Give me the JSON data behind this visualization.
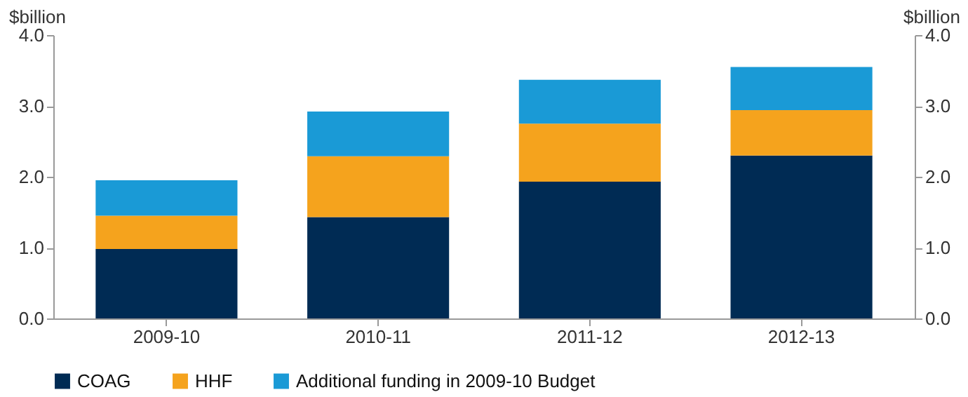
{
  "chart_data": {
    "type": "bar",
    "stacked": true,
    "categories": [
      "2009-10",
      "2010-11",
      "2011-12",
      "2012-13"
    ],
    "series": [
      {
        "name": "COAG",
        "color": "#002b54",
        "values": [
          0.98,
          1.43,
          1.93,
          2.3
        ]
      },
      {
        "name": "HHF",
        "color": "#f5a31d",
        "values": [
          0.47,
          0.86,
          0.82,
          0.64
        ]
      },
      {
        "name": "Additional funding in 2009-10 Budget",
        "color": "#1a9ad6",
        "values": [
          0.5,
          0.63,
          0.62,
          0.61
        ]
      }
    ],
    "ylabel": "$billion",
    "y2label": "$billion",
    "ylim": [
      0,
      4
    ],
    "yticks": [
      {
        "value": 0,
        "label": "0.0"
      },
      {
        "value": 1,
        "label": "1.0"
      },
      {
        "value": 2,
        "label": "2.0"
      },
      {
        "value": 3,
        "label": "3.0"
      },
      {
        "value": 4,
        "label": "4.0"
      }
    ],
    "y2lim": [
      0,
      4
    ],
    "y2ticks": [
      {
        "value": 0,
        "label": "0.0"
      },
      {
        "value": 1,
        "label": "1.0"
      },
      {
        "value": 2,
        "label": "2.0"
      },
      {
        "value": 3,
        "label": "3.0"
      },
      {
        "value": 4,
        "label": "4.0"
      }
    ],
    "grid": false,
    "legend": "bottom"
  }
}
